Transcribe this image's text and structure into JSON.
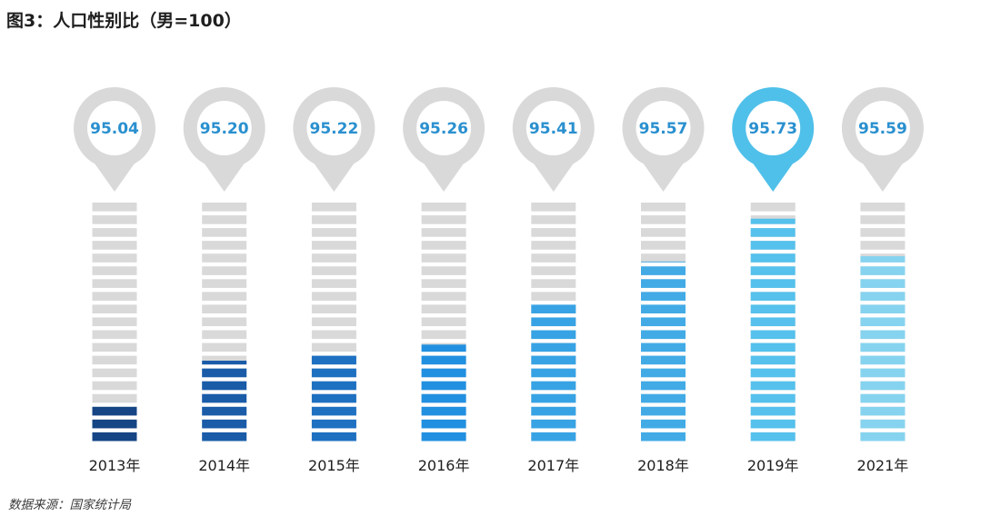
{
  "title": "图3：人口性别比（男=100）",
  "source": "数据来源：国家统计局",
  "colors": {
    "pin_default": "#d9d9d9",
    "pin_highlight": "#4fc0ea",
    "pin_circle": "#ffffff",
    "value_text": "#2a90cf",
    "segment_empty": "#d9d9d9",
    "bar_fills": [
      "#154585",
      "#1a5ca8",
      "#1e70c1",
      "#2290e0",
      "#38a3e4",
      "#42abe6",
      "#55c1ec",
      "#86d3ef"
    ]
  },
  "chart_data": {
    "type": "bar",
    "categories": [
      "2013年",
      "2014年",
      "2015年",
      "2016年",
      "2017年",
      "2018年",
      "2019年",
      "2021年"
    ],
    "values": [
      95.04,
      95.2,
      95.22,
      95.26,
      95.41,
      95.57,
      95.73,
      95.59
    ],
    "value_labels": [
      "95.04",
      "95.20",
      "95.22",
      "95.26",
      "95.41",
      "95.57",
      "95.73",
      "95.59"
    ],
    "ylim": [
      94.9,
      95.79
    ],
    "highlight_index": 6,
    "legend": false,
    "grid": false
  }
}
